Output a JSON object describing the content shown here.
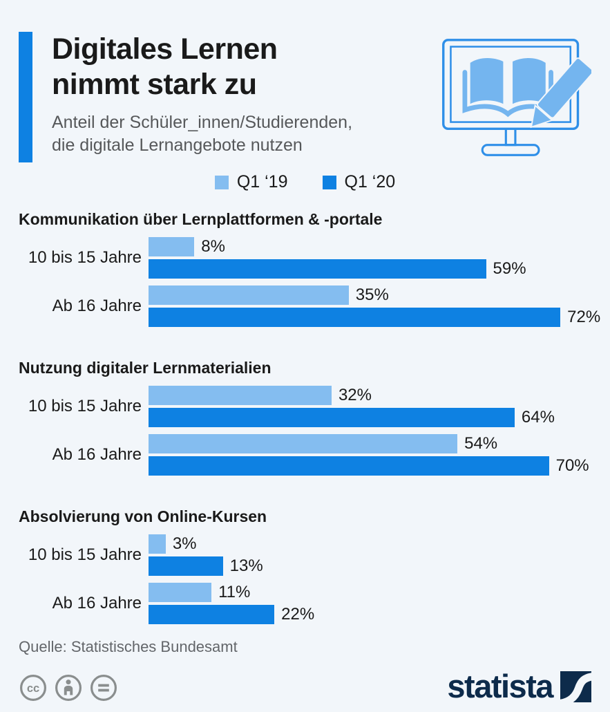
{
  "header": {
    "title_line1": "Digitales Lernen",
    "title_line2": "nimmt stark zu",
    "subtitle_line1": "Anteil der Schüler_innen/Studierenden,",
    "subtitle_line2": "die digitale Lernangebote nutzen"
  },
  "hero_icon": "monitor-with-open-book-and-pencil",
  "chart_data": {
    "type": "bar",
    "orientation": "horizontal",
    "unit": "%",
    "xlim": [
      0,
      80
    ],
    "grid": false,
    "legend_position": "top-center",
    "series": [
      {
        "name": "Q1 ‘19",
        "color": "#84BDF0"
      },
      {
        "name": "Q1 ‘20",
        "color": "#0E81E2"
      }
    ],
    "sections": [
      {
        "title": "Kommunikation über Lernplattformen & -portale",
        "rows": [
          {
            "label": "10 bis 15 Jahre",
            "values": [
              8,
              59
            ]
          },
          {
            "label": "Ab 16 Jahre",
            "values": [
              35,
              72
            ]
          }
        ]
      },
      {
        "title": "Nutzung digitaler Lernmaterialien",
        "rows": [
          {
            "label": "10 bis 15 Jahre",
            "values": [
              32,
              64
            ]
          },
          {
            "label": "Ab 16 Jahre",
            "values": [
              54,
              70
            ]
          }
        ]
      },
      {
        "title": "Absolvierung von Online-Kursen",
        "rows": [
          {
            "label": "10 bis 15 Jahre",
            "values": [
              3,
              13
            ]
          },
          {
            "label": "Ab 16 Jahre",
            "values": [
              11,
              22
            ]
          }
        ]
      }
    ]
  },
  "source": {
    "text": "Quelle: Statistisches Bundesamt"
  },
  "footer": {
    "license_icons": [
      "cc-icon",
      "attribution-icon",
      "no-derivatives-icon"
    ],
    "brand": "statista"
  },
  "colors": {
    "background": "#F2F6FA",
    "accent": "#0E81E2",
    "bar_light": "#84BDF0",
    "bar_dark": "#0E81E2",
    "title_text": "#1A1A1A",
    "subtitle_text": "#56585A",
    "source_text": "#63666A",
    "license_gray": "#8A8E8E",
    "brand_navy": "#0D2B4B",
    "icon_stroke": "#2F8FE8",
    "icon_fill": "#74B5EF"
  }
}
